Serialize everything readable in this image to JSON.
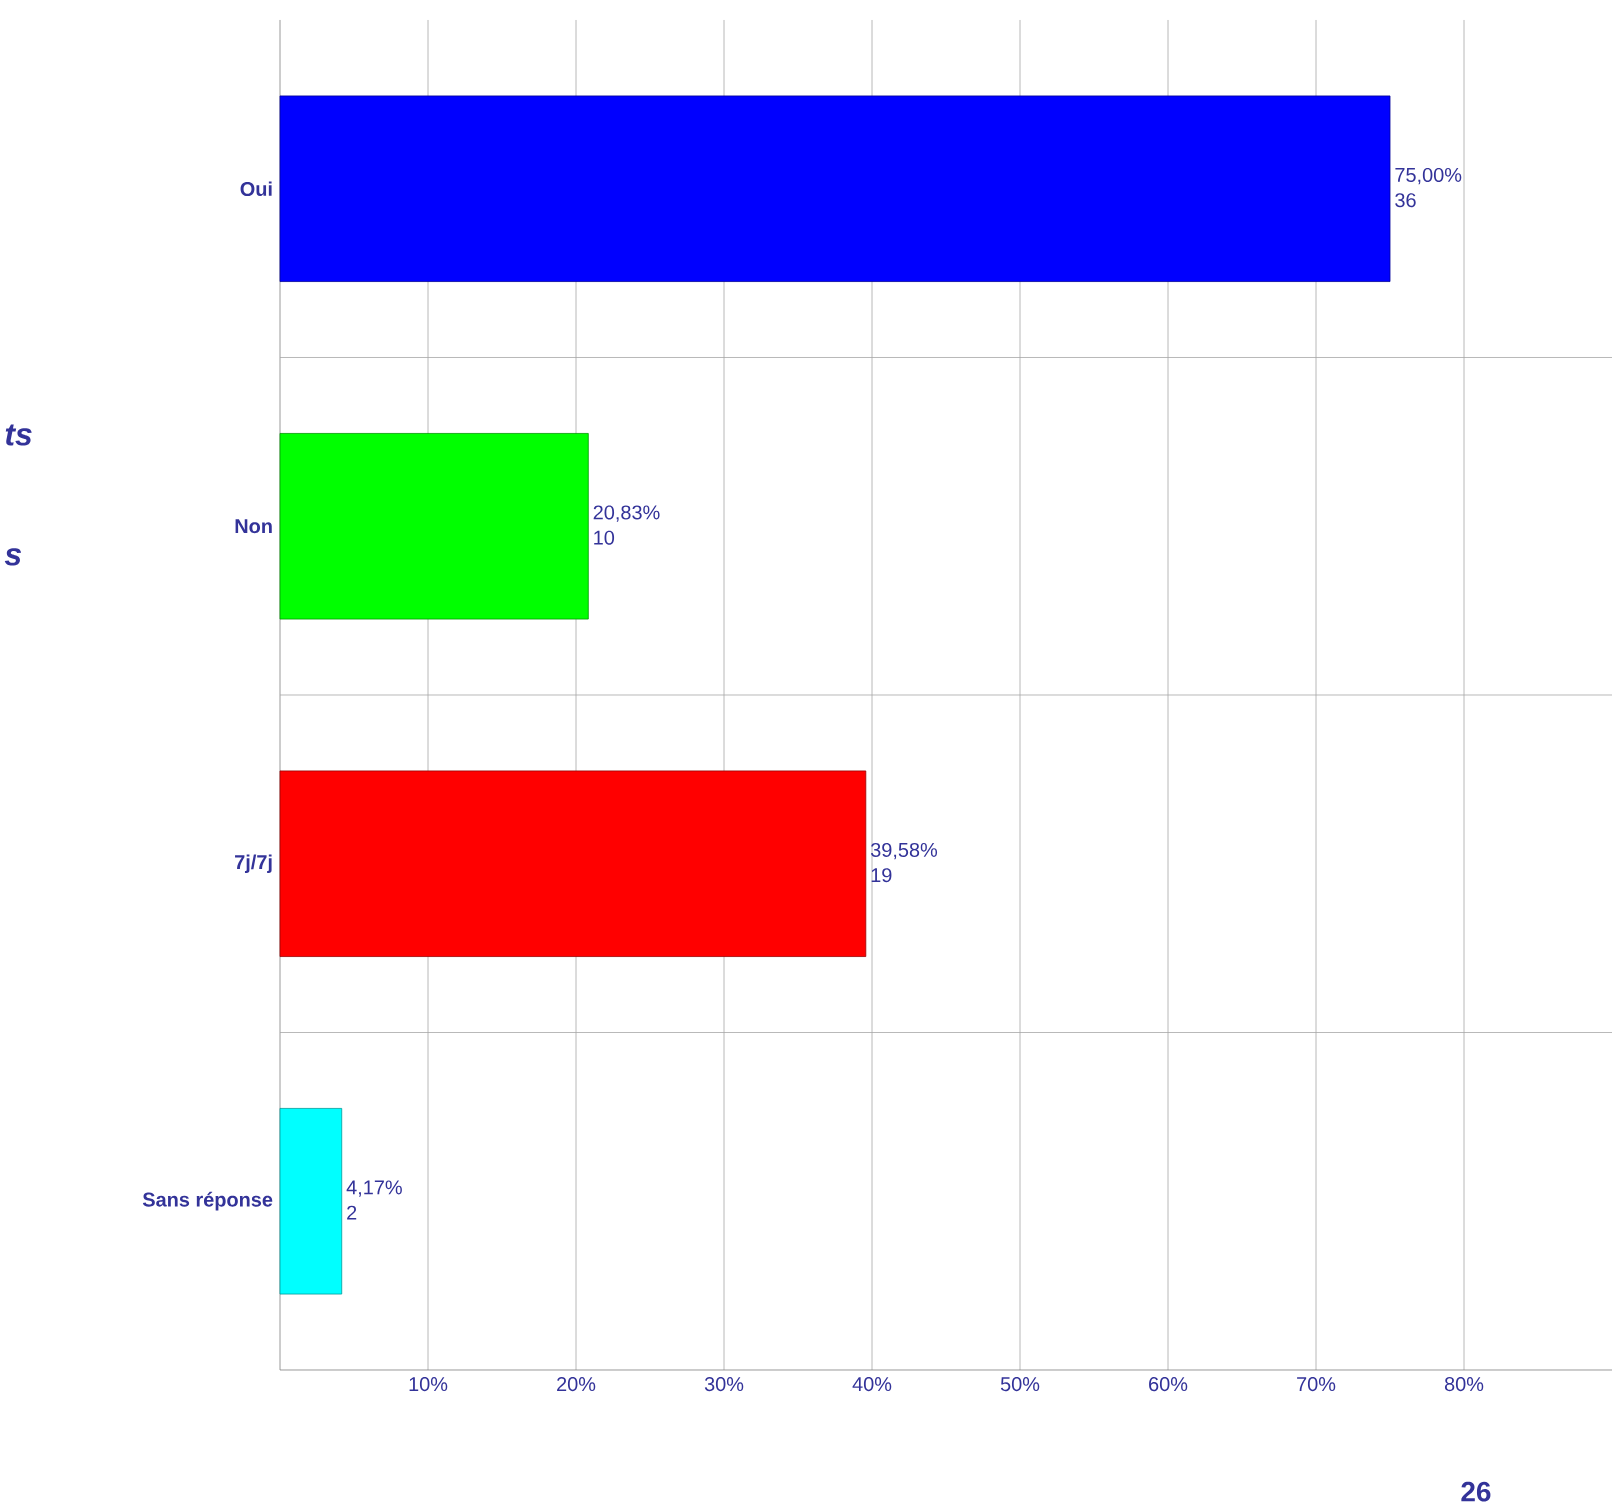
{
  "chart_data": {
    "type": "bar",
    "orientation": "horizontal",
    "categories": [
      "Oui",
      "Non",
      "7j/7j",
      "Sans réponse"
    ],
    "values": [
      75.0,
      20.83,
      39.58,
      4.17
    ],
    "colors": [
      "#0000ff",
      "#00ff00",
      "#ff0000",
      "#00ffff"
    ],
    "value_labels": [
      "75,00%",
      "20,83%",
      "39,58%",
      "4,17%"
    ],
    "xlim": [
      0,
      90
    ],
    "xticks": [
      {
        "value": 10,
        "label": "10%"
      },
      {
        "value": 20,
        "label": "20%"
      },
      {
        "value": 30,
        "label": "30%"
      },
      {
        "value": 40,
        "label": "40%"
      },
      {
        "value": 50,
        "label": "50%"
      },
      {
        "value": 60,
        "label": "60%"
      },
      {
        "value": 70,
        "label": "70%"
      },
      {
        "value": 80,
        "label": "80%"
      }
    ],
    "grid": true,
    "annotations": [
      {
        "text": "36",
        "x": 75.0,
        "y": "Oui"
      },
      {
        "text": "10",
        "x": 20.83,
        "y": "Non"
      },
      {
        "text": "19",
        "x": 39.58,
        "y": "7j/7j"
      },
      {
        "text": "2",
        "x": 4.17,
        "y": "Sans réponse"
      },
      "ts",
      "s",
      "26"
    ]
  }
}
